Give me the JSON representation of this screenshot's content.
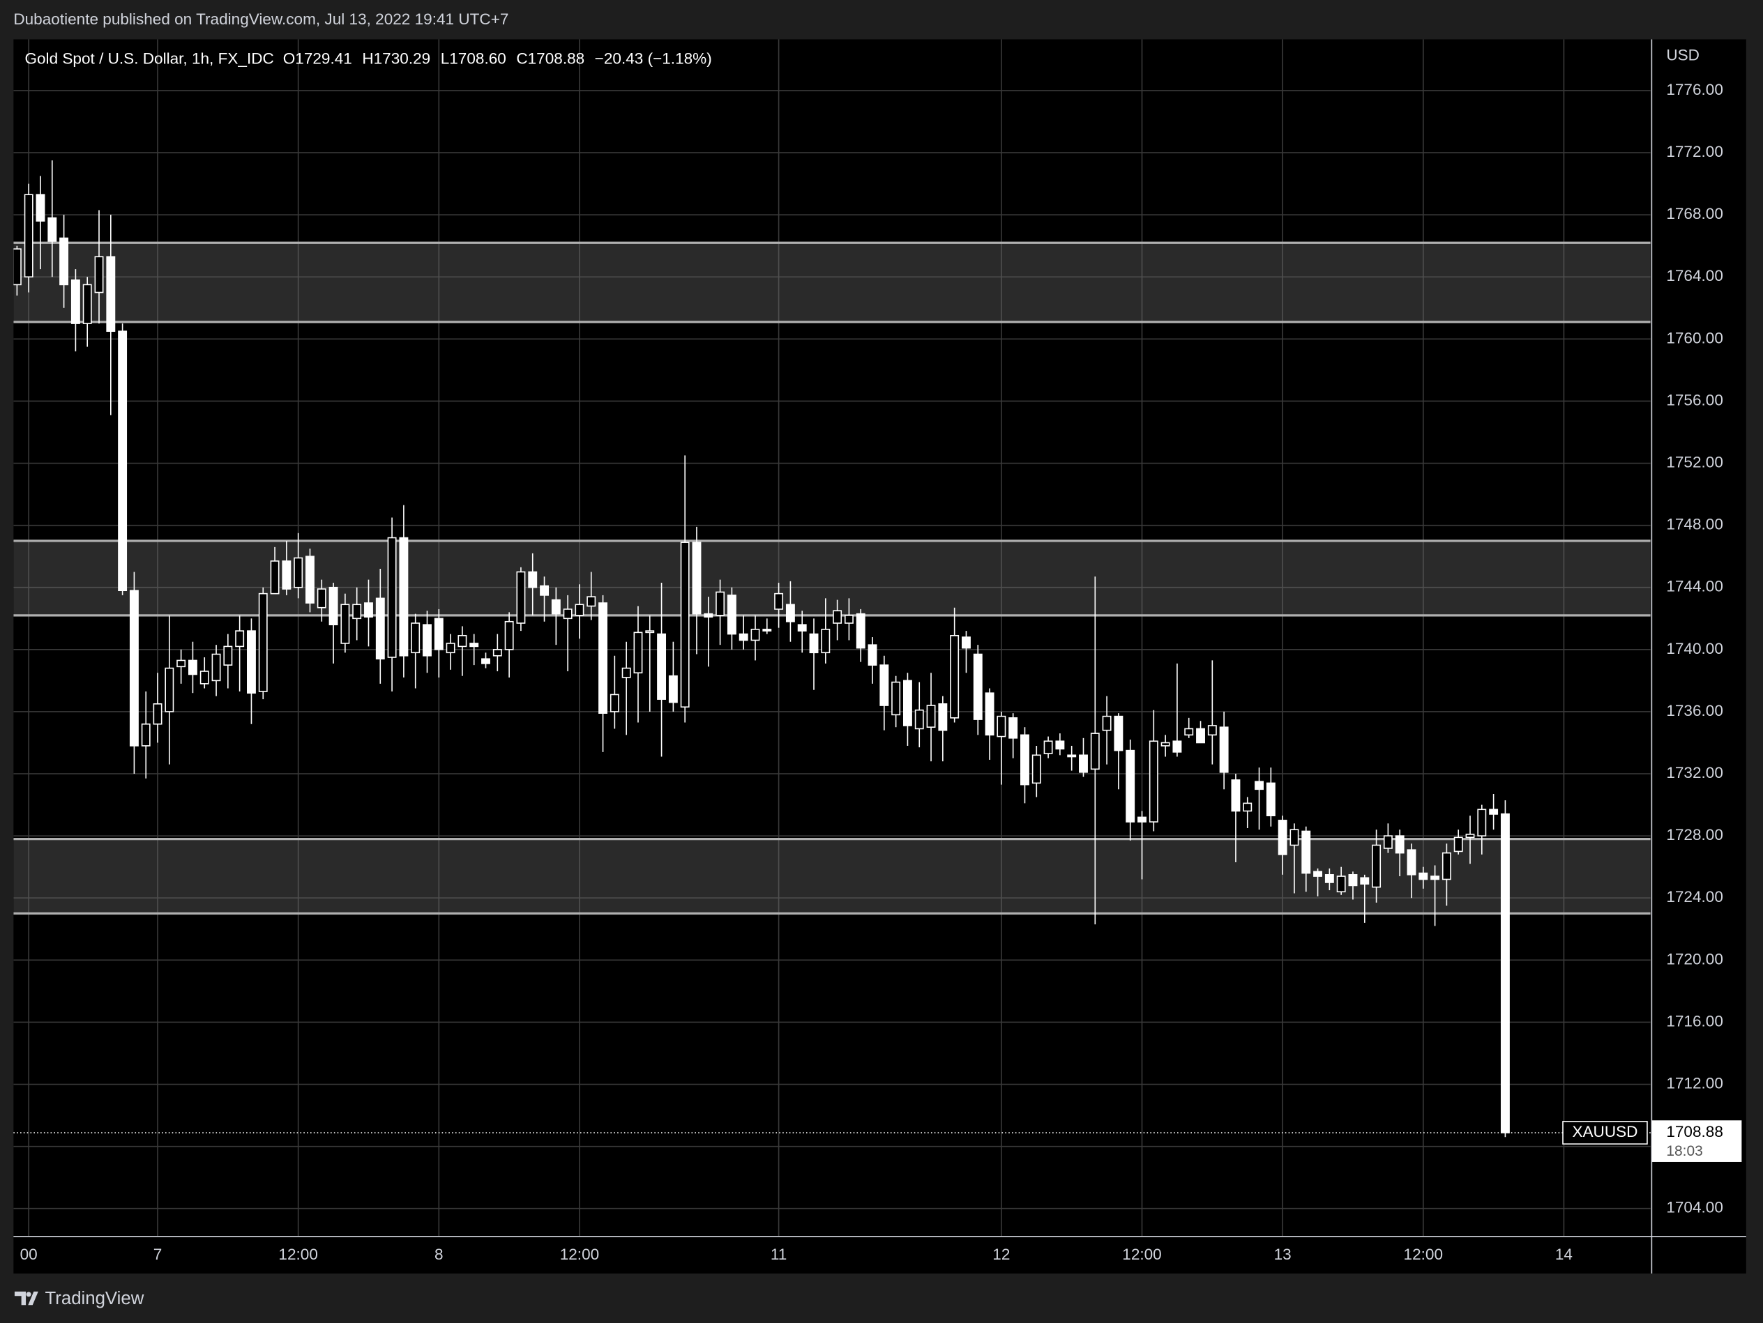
{
  "header": {
    "text": "Dubaotiente published on TradingView.com, Jul 13, 2022 19:41 UTC+7"
  },
  "footer": {
    "brand": "TradingView"
  },
  "chart_data": {
    "type": "candlestick",
    "title": "Gold Spot / U.S. Dollar, 1h, FX_IDC",
    "legend": {
      "keys": [
        "O",
        "H",
        "L",
        "C"
      ],
      "labels": [
        "1729.41",
        "1730.29",
        "1708.60",
        "1708.88"
      ],
      "change": "−20.43 (−1.18%)"
    },
    "currency": "USD",
    "symbol_label": "XAUUSD",
    "last_price": 1708.88,
    "countdown": "18:03",
    "grid": true,
    "up_fill": "#000000",
    "down_fill": "#ffffff",
    "zones": [
      {
        "low": 1761.1,
        "high": 1766.2
      },
      {
        "low": 1742.2,
        "high": 1747.0
      },
      {
        "low": 1723.0,
        "high": 1727.8
      }
    ],
    "xlim": [
      -0.3,
      139.4
    ],
    "xticks": [
      {
        "value": 1,
        "label": "00"
      },
      {
        "value": 12,
        "label": "7"
      },
      {
        "value": 24,
        "label": "12:00"
      },
      {
        "value": 36,
        "label": "8"
      },
      {
        "value": 48,
        "label": "12:00"
      },
      {
        "value": 65,
        "label": "11"
      },
      {
        "value": 84,
        "label": "12"
      },
      {
        "value": 96,
        "label": "12:00"
      },
      {
        "value": 108,
        "label": "13"
      },
      {
        "value": 120,
        "label": "12:00"
      },
      {
        "value": 132,
        "label": "14"
      }
    ],
    "ylim": [
      1702.2,
      1779.3
    ],
    "yticks": [
      {
        "value": 1704,
        "label": "1704.00"
      },
      {
        "value": 1708,
        "label": "1708.00"
      },
      {
        "value": 1712,
        "label": "1712.00"
      },
      {
        "value": 1716,
        "label": "1716.00"
      },
      {
        "value": 1720,
        "label": "1720.00"
      },
      {
        "value": 1724,
        "label": "1724.00"
      },
      {
        "value": 1728,
        "label": "1728.00"
      },
      {
        "value": 1732,
        "label": "1732.00"
      },
      {
        "value": 1736,
        "label": "1736.00"
      },
      {
        "value": 1740,
        "label": "1740.00"
      },
      {
        "value": 1744,
        "label": "1744.00"
      },
      {
        "value": 1748,
        "label": "1748.00"
      },
      {
        "value": 1752,
        "label": "1752.00"
      },
      {
        "value": 1756,
        "label": "1756.00"
      },
      {
        "value": 1760,
        "label": "1760.00"
      },
      {
        "value": 1764,
        "label": "1764.00"
      },
      {
        "value": 1768,
        "label": "1768.00"
      },
      {
        "value": 1772,
        "label": "1772.00"
      },
      {
        "value": 1776,
        "label": "1776.00"
      }
    ],
    "x": [
      0,
      1,
      2,
      3,
      4,
      5,
      6,
      7,
      8,
      9,
      10,
      11,
      12,
      13,
      14,
      15,
      16,
      17,
      18,
      19,
      20,
      21,
      22,
      23,
      24,
      25,
      26,
      27,
      28,
      29,
      30,
      31,
      32,
      33,
      34,
      35,
      36,
      37,
      38,
      39,
      40,
      41,
      42,
      43,
      44,
      45,
      46,
      47,
      48,
      49,
      50,
      51,
      52,
      53,
      54,
      55,
      56,
      57,
      58,
      59,
      60,
      61,
      62,
      63,
      64,
      65,
      66,
      67,
      68,
      69,
      70,
      71,
      72,
      73,
      74,
      75,
      76,
      77,
      78,
      79,
      80,
      81,
      82,
      83,
      84,
      85,
      86,
      87,
      88,
      89,
      90,
      91,
      92,
      93,
      94,
      95,
      96,
      97,
      98,
      99,
      100,
      101,
      102,
      103,
      104,
      105,
      106,
      107,
      108,
      109,
      110,
      111,
      112,
      113,
      114,
      115,
      116,
      117,
      118,
      119,
      120,
      121,
      122,
      123,
      124,
      125,
      126,
      127
    ],
    "series": [
      {
        "name": "XAUUSD",
        "color": "#ffffff",
        "open": [
          1763.5,
          1764,
          1769.3,
          1767.8,
          1766.5,
          1763.8,
          1761,
          1763,
          1765.3,
          1760.5,
          1743.8,
          1733.8,
          1735.2,
          1736,
          1738.9,
          1739.3,
          1737.8,
          1738,
          1739,
          1740.2,
          1741.2,
          1737.3,
          1743.6,
          1745.7,
          1744,
          1746,
          1742.7,
          1744,
          1740.4,
          1742,
          1743,
          1743.3,
          1739.5,
          1747.2,
          1739.8,
          1741.6,
          1742,
          1739.8,
          1740.2,
          1740.4,
          1739.4,
          1739.6,
          1740,
          1741.7,
          1745,
          1744.1,
          1743.2,
          1742,
          1742.2,
          1742.8,
          1743,
          1736,
          1738.2,
          1738.5,
          1741.1,
          1741,
          1738.3,
          1736.3,
          1746.9,
          1742.3,
          1742.2,
          1743.5,
          1741,
          1740.6,
          1741.3,
          1742.6,
          1742.9,
          1741.6,
          1741,
          1739.8,
          1741.7,
          1741.7,
          1742.3,
          1740.3,
          1739,
          1735.8,
          1738,
          1734.9,
          1735,
          1736.5,
          1735.6,
          1740.8,
          1739.7,
          1737.2,
          1734.4,
          1735.6,
          1734.5,
          1731.4,
          1733.3,
          1734.1,
          1733.2,
          1733.2,
          1732.3,
          1734.8,
          1735.7,
          1733.5,
          1729.2,
          1728.9,
          1733.8,
          1734.1,
          1734.5,
          1734.9,
          1734.5,
          1735,
          1731.6,
          1729.6,
          1731.5,
          1731.4,
          1729,
          1727.4,
          1728.3,
          1725.7,
          1725.5,
          1724.4,
          1725.5,
          1725.3,
          1724.7,
          1727.2,
          1728,
          1727.1,
          1725.6,
          1725.4,
          1725.2,
          1727,
          1727.9,
          1728,
          1729.7,
          1729.41
        ],
        "high": [
          1766,
          1770,
          1770.5,
          1771.5,
          1768,
          1764.5,
          1764,
          1768.3,
          1768,
          1761,
          1745,
          1737.3,
          1738.5,
          1742.2,
          1740,
          1740.5,
          1739.5,
          1740.3,
          1741,
          1742.2,
          1742,
          1744,
          1746.6,
          1747,
          1747.5,
          1746.5,
          1744.5,
          1744.3,
          1743.6,
          1744,
          1744.5,
          1745.2,
          1748.5,
          1749.3,
          1742.3,
          1742.5,
          1742.6,
          1741,
          1741.5,
          1741,
          1739.8,
          1741,
          1742.4,
          1745.3,
          1746.2,
          1744.7,
          1744,
          1743.5,
          1744.2,
          1745,
          1743.5,
          1739.6,
          1740.5,
          1742.8,
          1742.2,
          1744.3,
          1740.5,
          1752.5,
          1747.9,
          1743.4,
          1744.5,
          1744,
          1742.2,
          1742.2,
          1742,
          1744.3,
          1744.4,
          1742.5,
          1742,
          1743.3,
          1743.2,
          1743.3,
          1742.6,
          1740.8,
          1739.6,
          1738.3,
          1738.5,
          1737.9,
          1738.5,
          1737,
          1742.7,
          1741.2,
          1740.3,
          1737.5,
          1736,
          1735.9,
          1735,
          1733.8,
          1734.4,
          1734.6,
          1733.8,
          1734.3,
          1744.7,
          1737,
          1735.9,
          1734.2,
          1729.6,
          1736.1,
          1734.5,
          1739.1,
          1735.6,
          1735.4,
          1739.3,
          1736,
          1732,
          1730.5,
          1732.4,
          1732.4,
          1729.3,
          1728.8,
          1728.6,
          1725.9,
          1725.9,
          1726,
          1725.7,
          1725.5,
          1728.4,
          1728.8,
          1728.4,
          1727.5,
          1726,
          1726.1,
          1727.5,
          1728.4,
          1729.3,
          1730,
          1730.7,
          1730.29
        ],
        "low": [
          1762.8,
          1763,
          1764.5,
          1764,
          1762,
          1759.2,
          1759.5,
          1761,
          1755.1,
          1743.5,
          1732,
          1731.7,
          1734,
          1732.6,
          1737.8,
          1737.2,
          1737.5,
          1737,
          1737.5,
          1737.3,
          1735.2,
          1736.8,
          1743.6,
          1743.5,
          1743.3,
          1742.4,
          1741.8,
          1739.1,
          1739.8,
          1740.6,
          1740.2,
          1737.8,
          1737.3,
          1738.2,
          1737.5,
          1738.5,
          1738.2,
          1738.7,
          1738.3,
          1739,
          1738.8,
          1738.6,
          1738.2,
          1741.2,
          1742.2,
          1741.8,
          1740.3,
          1738.6,
          1740.7,
          1741.9,
          1733.4,
          1734.9,
          1734.5,
          1735.3,
          1736,
          1733.1,
          1736,
          1735.3,
          1739.7,
          1738.9,
          1740.3,
          1740,
          1740,
          1739.3,
          1741,
          1741.4,
          1740.5,
          1739.8,
          1737.4,
          1739.1,
          1740.6,
          1740.6,
          1739.2,
          1737.8,
          1734.8,
          1735,
          1733.8,
          1733.7,
          1732.8,
          1732.8,
          1735.3,
          1738.5,
          1734.5,
          1732.9,
          1731.3,
          1733,
          1730.1,
          1730.5,
          1733,
          1733.2,
          1732.2,
          1731.8,
          1722.3,
          1732.6,
          1731,
          1727.7,
          1725.2,
          1728.3,
          1733.1,
          1733.1,
          1734.3,
          1734,
          1732.6,
          1731,
          1726.3,
          1728.5,
          1728.4,
          1728.6,
          1725.5,
          1724.3,
          1724.4,
          1724.1,
          1724.5,
          1724.2,
          1723.9,
          1722.4,
          1723.7,
          1726.9,
          1725.4,
          1724,
          1724.6,
          1722.2,
          1723.5,
          1726.8,
          1726.2,
          1726.8,
          1728.4,
          1708.6
        ],
        "close": [
          1765.8,
          1769.3,
          1767.6,
          1766.3,
          1763.5,
          1761,
          1763.5,
          1765.3,
          1760.5,
          1743.8,
          1733.8,
          1735.2,
          1736.5,
          1738.8,
          1739.3,
          1738.4,
          1738.6,
          1739.7,
          1740.2,
          1741.2,
          1737.2,
          1743.6,
          1745.7,
          1743.9,
          1745.9,
          1743,
          1743.9,
          1741.6,
          1742.9,
          1742.9,
          1742.1,
          1739.4,
          1747.2,
          1739.6,
          1741.7,
          1739.6,
          1740,
          1740.4,
          1740.9,
          1740.2,
          1739.1,
          1740,
          1741.8,
          1745,
          1744,
          1743.5,
          1742.3,
          1742.6,
          1742.9,
          1743.4,
          1735.9,
          1737.1,
          1738.8,
          1741.1,
          1741.2,
          1736.8,
          1736.6,
          1746.9,
          1742.3,
          1742.1,
          1743.7,
          1741,
          1740.6,
          1741.3,
          1741.2,
          1743.6,
          1741.8,
          1741.2,
          1739.8,
          1741.3,
          1742.5,
          1742.2,
          1740.1,
          1739,
          1736.4,
          1737.9,
          1735.1,
          1736.1,
          1736.4,
          1734.8,
          1740.9,
          1740.1,
          1735.5,
          1734.5,
          1735.7,
          1734.3,
          1731.3,
          1733.2,
          1734.1,
          1733.6,
          1733.1,
          1732.1,
          1734.6,
          1735.7,
          1733.5,
          1728.9,
          1728.9,
          1734.1,
          1734,
          1733.4,
          1734.9,
          1734,
          1735.1,
          1732.1,
          1729.6,
          1730.1,
          1731,
          1729.3,
          1726.8,
          1728.4,
          1725.6,
          1725.4,
          1725,
          1725.4,
          1724.8,
          1724.9,
          1727.4,
          1728,
          1726.9,
          1725.5,
          1725.2,
          1725.2,
          1726.9,
          1727.9,
          1728.1,
          1729.7,
          1729.4,
          1708.88
        ]
      }
    ]
  }
}
